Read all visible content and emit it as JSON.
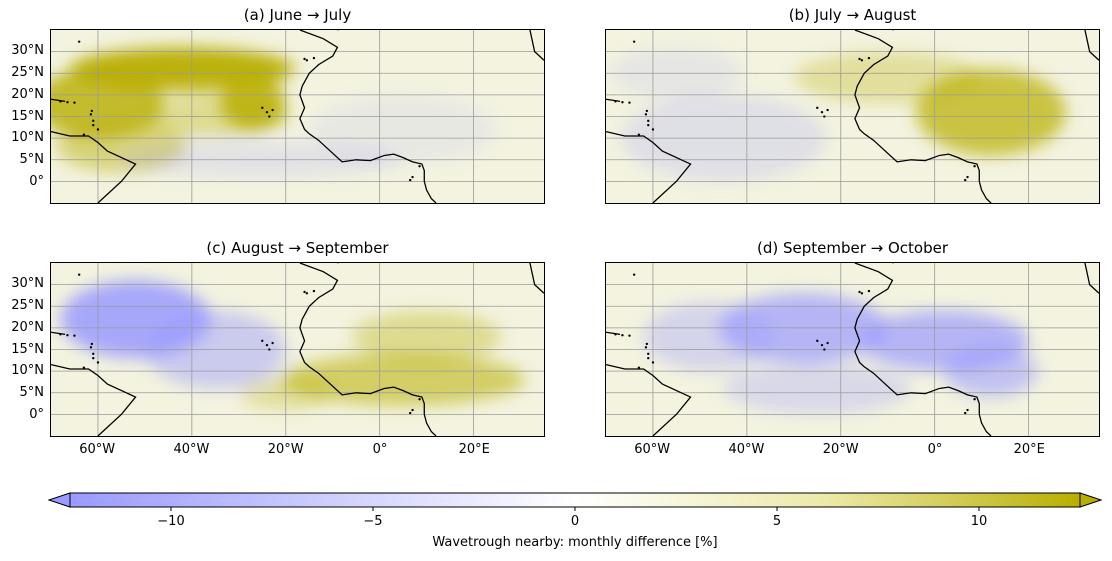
{
  "panels": [
    {
      "title": "(a) June → July"
    },
    {
      "title": "(b) July → August"
    },
    {
      "title": "(c) August → September"
    },
    {
      "title": "(d) September → October"
    }
  ],
  "lat_ticks": [
    "30°N",
    "25°N",
    "20°N",
    "15°N",
    "10°N",
    "5°N",
    "0°"
  ],
  "lon_ticks": [
    "60°W",
    "40°W",
    "20°W",
    "0°",
    "20°E"
  ],
  "colorbar": {
    "label": "Wavetrough nearby: monthly difference [%]",
    "ticks": [
      "−10",
      "−5",
      "0",
      "5",
      "10"
    ],
    "range": [
      -12.5,
      12.5
    ],
    "extend": "both",
    "color_low": "#9a9aff",
    "color_mid": "#ffffff",
    "color_high": "#b8ae00"
  },
  "map_extent": {
    "lon": [
      -70,
      35
    ],
    "lat": [
      -5,
      35
    ]
  }
}
